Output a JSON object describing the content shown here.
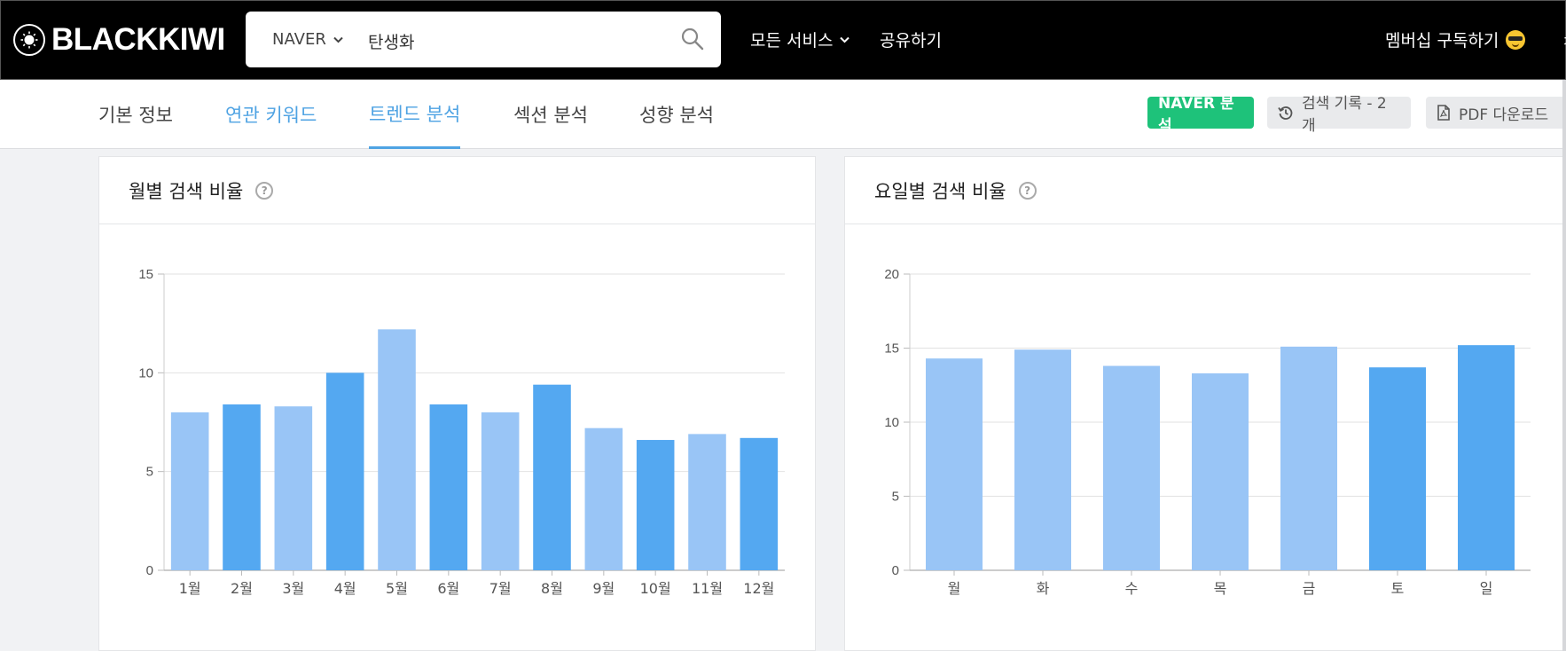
{
  "topbar": {
    "logo_text": "BLACKKIWI",
    "search": {
      "engine": "NAVER",
      "query": "탄생화"
    },
    "nav": {
      "services": "모든 서비스",
      "share": "공유하기",
      "membership": "멤버십 구독하기",
      "cut_text": "ㅊ"
    }
  },
  "subnav": {
    "tabs": [
      {
        "label": "기본 정보"
      },
      {
        "label": "연관 키워드"
      },
      {
        "label": "트렌드 분석"
      },
      {
        "label": "섹션 분석"
      },
      {
        "label": "성향 분석"
      }
    ],
    "active_tab": "트렌드 분석",
    "naver_button": "NAVER 분석",
    "history_button": "검색 기록 - 2개",
    "pdf_button": "PDF 다운로드"
  },
  "colors": {
    "brand_green": "#1ec27a",
    "accent_blue": "#4fa3e3",
    "bar_light": "#99c5f6",
    "bar_dark": "#54a8f1"
  },
  "chart_data": [
    {
      "type": "bar",
      "title": "월별 검색 비율",
      "categories": [
        "1월",
        "2월",
        "3월",
        "4월",
        "5월",
        "6월",
        "7월",
        "8월",
        "9월",
        "10월",
        "11월",
        "12월"
      ],
      "values": [
        8.0,
        8.4,
        8.3,
        10.0,
        12.2,
        8.4,
        8.0,
        9.4,
        7.2,
        6.6,
        6.9,
        6.7
      ],
      "highlight": [
        false,
        true,
        false,
        true,
        false,
        true,
        false,
        true,
        false,
        true,
        false,
        true
      ],
      "yticks": [
        0,
        5,
        10,
        15
      ],
      "ylim": [
        0,
        15
      ],
      "grid": true
    },
    {
      "type": "bar",
      "title": "요일별 검색 비율",
      "categories": [
        "월",
        "화",
        "수",
        "목",
        "금",
        "토",
        "일"
      ],
      "values": [
        14.3,
        14.9,
        13.8,
        13.3,
        15.1,
        13.7,
        15.2
      ],
      "highlight": [
        false,
        false,
        false,
        false,
        false,
        true,
        true
      ],
      "yticks": [
        0,
        5,
        10,
        15,
        20
      ],
      "ylim": [
        0,
        20
      ],
      "grid": true
    }
  ]
}
